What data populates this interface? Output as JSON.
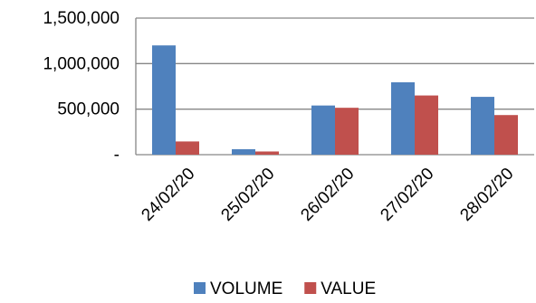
{
  "chart_data": {
    "type": "bar",
    "categories": [
      "24/02/20",
      "25/02/20",
      "26/02/20",
      "27/02/20",
      "28/02/20"
    ],
    "series": [
      {
        "name": "VOLUME",
        "color": "#4F81BD",
        "values": [
          1200000,
          60000,
          540000,
          795000,
          635000
        ]
      },
      {
        "name": "VALUE",
        "color": "#C0504D",
        "values": [
          145000,
          35000,
          515000,
          650000,
          435000
        ]
      }
    ],
    "ylim": [
      0,
      1500000
    ],
    "yticks": [
      {
        "value": 0,
        "label": "-"
      },
      {
        "value": 500000,
        "label": "500,000"
      },
      {
        "value": 1000000,
        "label": "1,000,000"
      },
      {
        "value": 1500000,
        "label": "1,500,000"
      }
    ],
    "grid": true,
    "legend_position": "bottom"
  }
}
